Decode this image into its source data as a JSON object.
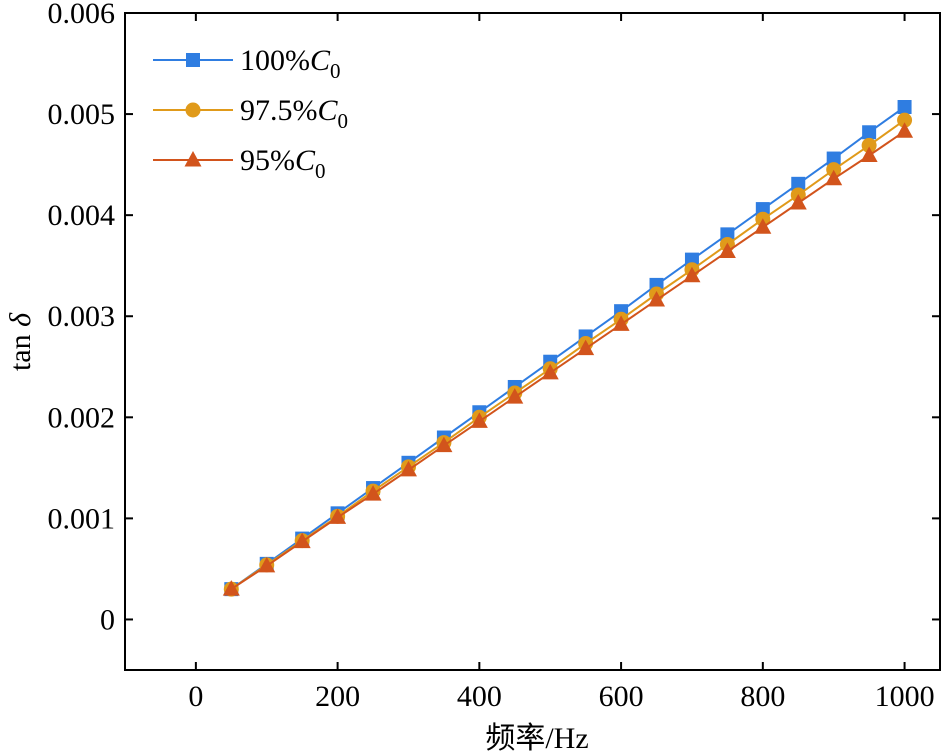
{
  "chart_data": {
    "type": "line",
    "xlabel": "频率/Hz",
    "ylabel": "tan δ",
    "ylabel_parts": {
      "base": "tan ",
      "symbol": "δ"
    },
    "xlim": [
      -100,
      1050
    ],
    "ylim": [
      -0.0005,
      0.006
    ],
    "xticks": [
      0,
      200,
      400,
      600,
      800,
      1000
    ],
    "xtick_labels": [
      "0",
      "200",
      "400",
      "600",
      "800",
      "1000"
    ],
    "yticks": [
      0,
      0.001,
      0.002,
      0.003,
      0.004,
      0.005,
      0.006
    ],
    "ytick_labels": [
      "0",
      "0.001",
      "0.002",
      "0.003",
      "0.004",
      "0.005",
      "0.006"
    ],
    "grid": false,
    "legend_position": "top-left",
    "x": [
      50,
      100,
      150,
      200,
      250,
      300,
      350,
      400,
      450,
      500,
      550,
      600,
      650,
      700,
      750,
      800,
      850,
      900,
      950,
      1000
    ],
    "series": [
      {
        "name": "100%C0",
        "label_parts": {
          "prefix": "100%",
          "var": "C",
          "sub": "0"
        },
        "color": "#2f7de1",
        "marker": "square",
        "values": [
          0.0003,
          0.00055,
          0.0008,
          0.00105,
          0.0013,
          0.00155,
          0.0018,
          0.00205,
          0.0023,
          0.00255,
          0.0028,
          0.00305,
          0.00331,
          0.00356,
          0.00381,
          0.00406,
          0.00431,
          0.00456,
          0.00482,
          0.00507
        ]
      },
      {
        "name": "97.5%C0",
        "label_parts": {
          "prefix": "97.5%",
          "var": "C",
          "sub": "0"
        },
        "color": "#e09a1a",
        "marker": "circle",
        "values": [
          0.0003,
          0.00054,
          0.00078,
          0.00102,
          0.00127,
          0.00151,
          0.00175,
          0.002,
          0.00224,
          0.00248,
          0.00273,
          0.00297,
          0.00322,
          0.00346,
          0.00371,
          0.00396,
          0.0042,
          0.00445,
          0.00469,
          0.00494
        ]
      },
      {
        "name": "95%C0",
        "label_parts": {
          "prefix": "95%",
          "var": "C",
          "sub": "0"
        },
        "color": "#d2541c",
        "marker": "triangle",
        "values": [
          0.0003,
          0.00053,
          0.00077,
          0.00101,
          0.00124,
          0.00148,
          0.00172,
          0.00196,
          0.0022,
          0.00244,
          0.00268,
          0.00292,
          0.00316,
          0.0034,
          0.00364,
          0.00388,
          0.00412,
          0.00436,
          0.00459,
          0.00483
        ]
      }
    ]
  }
}
